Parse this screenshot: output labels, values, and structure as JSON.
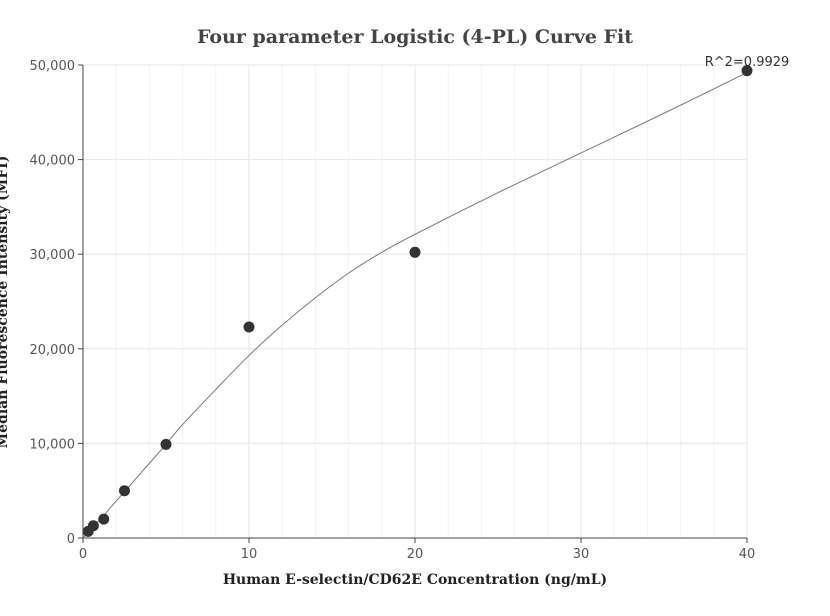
{
  "chart_data": {
    "type": "scatter",
    "title": "Four parameter Logistic (4-PL) Curve Fit",
    "xlabel": "Human E-selectin/CD62E Concentration (ng/mL)",
    "ylabel": "Median Fluorescence Intensity (MFI)",
    "xlim": [
      0,
      40
    ],
    "ylim": [
      0,
      50000
    ],
    "x_ticks": [
      0,
      10,
      20,
      30,
      40
    ],
    "x_tick_labels": [
      "0",
      "10",
      "20",
      "30",
      "40"
    ],
    "y_ticks": [
      0,
      10000,
      20000,
      30000,
      40000,
      50000
    ],
    "y_tick_labels": [
      "0",
      "10,000",
      "20,000",
      "30,000",
      "40,000",
      "50,000"
    ],
    "grid": true,
    "series": [
      {
        "type": "scatter",
        "x": [
          0.3125,
          0.625,
          1.25,
          2.5,
          5,
          10,
          20,
          40
        ],
        "y": [
          700,
          1300,
          2000,
          5000,
          9900,
          22300,
          30200,
          49400
        ],
        "color": "#333333"
      },
      {
        "type": "line",
        "x": [
          0,
          1,
          2,
          3,
          4,
          5,
          6,
          8,
          10,
          12,
          14,
          16,
          18,
          20,
          25,
          30,
          35,
          40
        ],
        "y": [
          0,
          1900,
          3900,
          5900,
          7900,
          9900,
          12000,
          15700,
          19300,
          22500,
          25400,
          28000,
          30200,
          32100,
          36500,
          40700,
          44900,
          49200
        ],
        "color": "#777777"
      }
    ],
    "annotations": [
      "R^2=0.9929"
    ]
  }
}
